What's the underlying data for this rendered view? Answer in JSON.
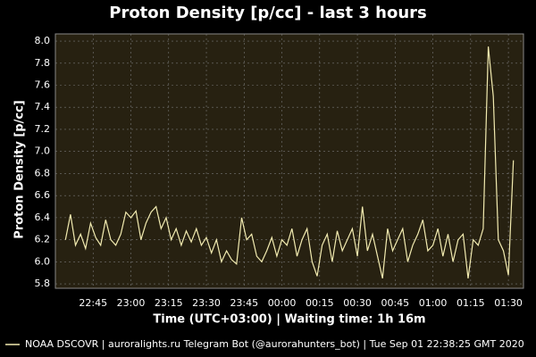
{
  "chart_data": {
    "type": "line",
    "title": "Proton Density [p/cc] - last 3 hours",
    "x_label": "Time (UTC+03:00) | Waiting time: 1h 16m",
    "y_label": "Proton Density [p/cc]",
    "x": [
      "22:34",
      "22:36",
      "22:38",
      "22:40",
      "22:42",
      "22:44",
      "22:46",
      "22:48",
      "22:50",
      "22:52",
      "22:54",
      "22:56",
      "22:58",
      "23:00",
      "23:02",
      "23:04",
      "23:06",
      "23:08",
      "23:10",
      "23:12",
      "23:14",
      "23:16",
      "23:18",
      "23:20",
      "23:22",
      "23:24",
      "23:26",
      "23:28",
      "23:30",
      "23:32",
      "23:34",
      "23:36",
      "23:38",
      "23:40",
      "23:42",
      "23:44",
      "23:46",
      "23:48",
      "23:50",
      "23:52",
      "23:54",
      "23:56",
      "23:58",
      "00:00",
      "00:02",
      "00:04",
      "00:06",
      "00:08",
      "00:10",
      "00:12",
      "00:14",
      "00:16",
      "00:18",
      "00:20",
      "00:22",
      "00:24",
      "00:26",
      "00:28",
      "00:30",
      "00:32",
      "00:34",
      "00:36",
      "00:38",
      "00:40",
      "00:42",
      "00:44",
      "00:46",
      "00:48",
      "00:50",
      "00:52",
      "00:54",
      "00:56",
      "00:58",
      "01:00",
      "01:02",
      "01:04",
      "01:06",
      "01:08",
      "01:10",
      "01:12",
      "01:14",
      "01:16",
      "01:18",
      "01:20",
      "01:22",
      "01:24",
      "01:26",
      "01:28",
      "01:30",
      "01:32"
    ],
    "series": [
      {
        "name": "NOAA DSCOVR | auroralights.ru Telegram Bot (@aurorahunters_bot) | Tue Sep 01 22:38:25 GMT 2020",
        "color": "#f2ebb0",
        "values": [
          6.2,
          6.43,
          6.15,
          6.25,
          6.12,
          6.35,
          6.22,
          6.15,
          6.38,
          6.2,
          6.15,
          6.25,
          6.45,
          6.4,
          6.46,
          6.2,
          6.35,
          6.45,
          6.5,
          6.3,
          6.4,
          6.2,
          6.3,
          6.15,
          6.28,
          6.18,
          6.3,
          6.15,
          6.22,
          6.08,
          6.2,
          6.0,
          6.1,
          6.02,
          5.98,
          6.4,
          6.2,
          6.25,
          6.05,
          6.0,
          6.1,
          6.22,
          6.05,
          6.2,
          6.15,
          6.3,
          6.05,
          6.2,
          6.3,
          6.0,
          5.87,
          6.15,
          6.25,
          6.0,
          6.28,
          6.1,
          6.2,
          6.3,
          6.05,
          6.5,
          6.1,
          6.25,
          6.05,
          5.85,
          6.3,
          6.1,
          6.2,
          6.3,
          6.0,
          6.15,
          6.25,
          6.38,
          6.1,
          6.15,
          6.3,
          6.05,
          6.25,
          6.0,
          6.2,
          6.25,
          5.85,
          6.2,
          6.15,
          6.3,
          7.95,
          7.5,
          6.2,
          6.1,
          5.88,
          6.92
        ]
      }
    ],
    "xlim": [
      "22:30",
      "01:36"
    ],
    "xticks": [
      "22:45",
      "23:00",
      "23:15",
      "23:30",
      "23:45",
      "00:00",
      "00:15",
      "00:30",
      "00:45",
      "01:00",
      "01:15",
      "01:30"
    ],
    "ylim": [
      5.76,
      8.065
    ],
    "yticks": [
      5.8,
      {
        "value": 6,
        "label": "6.0"
      },
      6.2,
      6.4,
      6.6,
      6.8,
      {
        "value": 7,
        "label": "7.0"
      },
      7.2,
      7.4,
      7.6,
      7.8,
      {
        "value": 8,
        "label": "8.0"
      }
    ],
    "grid": true,
    "plot_background": "#272111"
  }
}
